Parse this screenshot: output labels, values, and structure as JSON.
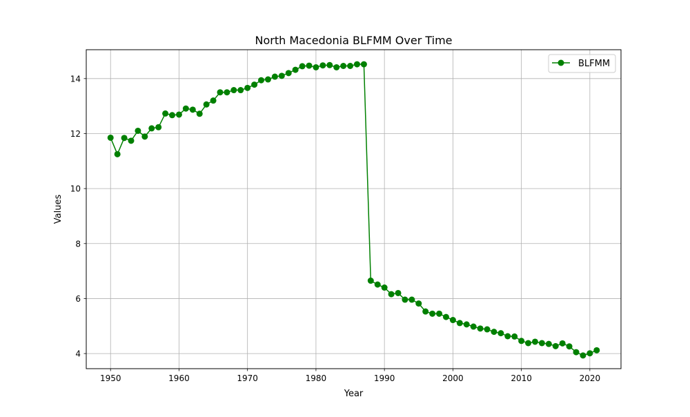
{
  "chart_data": {
    "type": "line",
    "title": "North Macedonia BLFMM Over Time",
    "xlabel": "Year",
    "ylabel": "Values",
    "xlim": [
      1946.45,
      2024.55
    ],
    "ylim": [
      3.45,
      15.05
    ],
    "xticks": [
      1950,
      1960,
      1970,
      1980,
      1990,
      2000,
      2010,
      2020
    ],
    "yticks": [
      4,
      6,
      8,
      10,
      12,
      14
    ],
    "grid": true,
    "legend_position": "top-right",
    "color": "#008000",
    "marker": "circle",
    "series": [
      {
        "name": "BLFMM",
        "x": [
          1950,
          1951,
          1952,
          1953,
          1954,
          1955,
          1956,
          1957,
          1958,
          1959,
          1960,
          1961,
          1962,
          1963,
          1964,
          1965,
          1966,
          1967,
          1968,
          1969,
          1970,
          1971,
          1972,
          1973,
          1974,
          1975,
          1976,
          1977,
          1978,
          1979,
          1980,
          1981,
          1982,
          1983,
          1984,
          1985,
          1986,
          1987,
          1988,
          1989,
          1990,
          1991,
          1992,
          1993,
          1994,
          1995,
          1996,
          1997,
          1998,
          1999,
          2000,
          2001,
          2002,
          2003,
          2004,
          2005,
          2006,
          2007,
          2008,
          2009,
          2010,
          2011,
          2012,
          2013,
          2014,
          2015,
          2016,
          2017,
          2018,
          2019,
          2020,
          2021
        ],
        "values": [
          11.85,
          11.25,
          11.84,
          11.74,
          12.1,
          11.89,
          12.19,
          12.23,
          12.73,
          12.67,
          12.69,
          12.91,
          12.87,
          12.72,
          13.06,
          13.2,
          13.5,
          13.5,
          13.58,
          13.58,
          13.66,
          13.78,
          13.94,
          13.97,
          14.07,
          14.1,
          14.2,
          14.32,
          14.45,
          14.47,
          14.41,
          14.48,
          14.49,
          14.41,
          14.46,
          14.46,
          14.52,
          14.52,
          6.65,
          6.51,
          6.4,
          6.16,
          6.2,
          5.96,
          5.96,
          5.82,
          5.53,
          5.45,
          5.45,
          5.33,
          5.22,
          5.11,
          5.06,
          4.98,
          4.91,
          4.88,
          4.79,
          4.74,
          4.63,
          4.62,
          4.46,
          4.38,
          4.43,
          4.38,
          4.35,
          4.27,
          4.37,
          4.26,
          4.05,
          3.93,
          4.01,
          4.12
        ]
      }
    ]
  }
}
